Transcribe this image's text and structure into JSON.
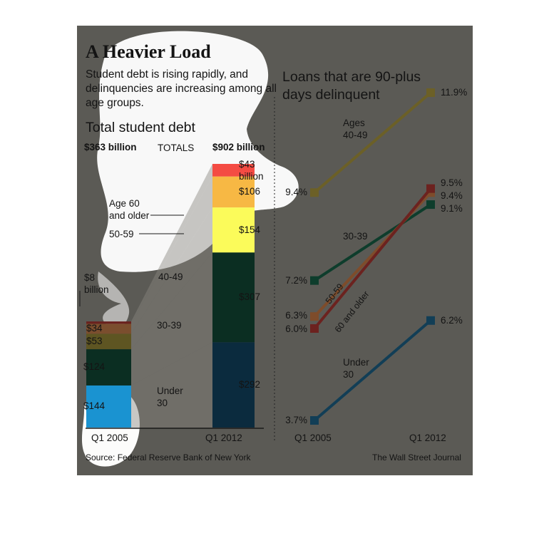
{
  "header": {
    "title": "A Heavier Load",
    "subtitle": "Student debt is rising rapidly, and delinquencies are increasing among all age groups."
  },
  "left_chart": {
    "heading": "Total student debt",
    "totals_label": "TOTALS",
    "total_2005": "$363 billion",
    "total_2012": "$902 billion",
    "x_labels": [
      "Q1 2005",
      "Q1 2012"
    ],
    "band_labels": {
      "age60": "Age 60\nand older",
      "age50": "50-59",
      "age40": "40-49",
      "age30": "30-39",
      "under30": "Under\n30"
    },
    "value_labels_2005": {
      "age60": "$8\nbillion",
      "age50": "$34",
      "age40": "$53",
      "age30": "$124",
      "under30": "$144"
    },
    "value_labels_2012": {
      "age60": "$43\nbillion",
      "age50": "$106",
      "age40": "$154",
      "age30": "$307",
      "under30": "$292"
    }
  },
  "right_chart": {
    "heading": "Loans that are 90-plus days delinquent",
    "x_labels": [
      "Q1 2005",
      "Q1 2012"
    ],
    "series_labels": {
      "ages40": "Ages\n40-49",
      "ages30": "30-39",
      "ages50": "50-59",
      "ages60": "60 and older",
      "under30": "Under\n30"
    },
    "start_labels": {
      "ages40": "9.4%",
      "ages30": "7.2%",
      "ages50": "6.3%",
      "ages60": "6.0%",
      "under30": "3.7%"
    },
    "end_labels": {
      "ages40": "11.9%",
      "ages60": "9.5%",
      "ages50": "9.4%",
      "ages30": "9.1%",
      "under30": "6.2%"
    }
  },
  "footer": {
    "source": "Source: Federal Reserve Bank of New York",
    "credit": "The Wall Street Journal"
  },
  "colors": {
    "panel": "#5b5a55",
    "highlight": "#ffffff",
    "under30": "#0b2b3e",
    "under30_highlight": "#1a93d1",
    "age30_39": "#0b2e22",
    "age40_49": "#5e5522",
    "age40_49_highlight": "#fbfb5a",
    "age50_59": "#f7b844",
    "age50_59_dark": "#7b4e2e",
    "age60_plus": "#f44b43",
    "age60_plus_dark": "#6a221e",
    "line_40_49": "#6c6027",
    "line_30_39": "#0e3d2c",
    "line_50_59": "#7e4c2b",
    "line_60_plus": "#6c221f",
    "line_under30": "#123e56"
  },
  "chart_data": [
    {
      "type": "bar",
      "title": "Total student debt",
      "categories": [
        "Q1 2005",
        "Q1 2012"
      ],
      "stacked": true,
      "unit": "billion dollars",
      "totals": [
        363,
        902
      ],
      "series": [
        {
          "name": "Under 30",
          "values": [
            144,
            292
          ]
        },
        {
          "name": "30-39",
          "values": [
            124,
            307
          ]
        },
        {
          "name": "40-49",
          "values": [
            53,
            154
          ]
        },
        {
          "name": "50-59",
          "values": [
            34,
            106
          ]
        },
        {
          "name": "Age 60 and older",
          "values": [
            8,
            43
          ]
        }
      ],
      "ylim": [
        0,
        902
      ]
    },
    {
      "type": "line",
      "title": "Loans that are 90-plus days delinquent",
      "x": [
        "Q1 2005",
        "Q1 2012"
      ],
      "unit": "percent",
      "series": [
        {
          "name": "Ages 40-49",
          "values": [
            9.4,
            11.9
          ]
        },
        {
          "name": "30-39",
          "values": [
            7.2,
            9.1
          ]
        },
        {
          "name": "50-59",
          "values": [
            6.3,
            9.4
          ]
        },
        {
          "name": "60 and older",
          "values": [
            6.0,
            9.5
          ]
        },
        {
          "name": "Under 30",
          "values": [
            3.7,
            6.2
          ]
        }
      ],
      "ylim": [
        3.7,
        11.9
      ]
    }
  ]
}
